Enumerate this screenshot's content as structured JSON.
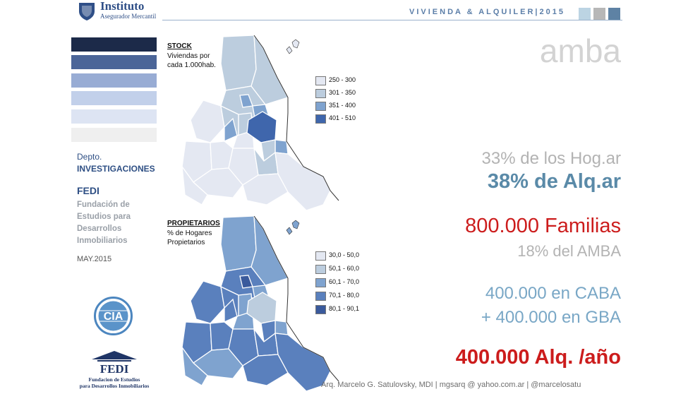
{
  "header": {
    "logo_title": "Instituto",
    "logo_subtitle": "Asegurador Mercantil",
    "title": "VIVIENDA & ALQUILER|2015",
    "squares": [
      "#bcd4e3",
      "#b7b7b7",
      "#5e82a4"
    ]
  },
  "sidebar": {
    "swatches": [
      "#1c2a49",
      "#4b6598",
      "#98acd4",
      "#c2d0ea",
      "#dde4f3",
      "#efefef"
    ],
    "dept_label": "Depto.",
    "dept_name": "INVESTIGACIONES",
    "fedi_heading": "FEDI",
    "fedi_lines": [
      "Fundación de",
      "Estudios para",
      "Desarrollos",
      "Inmobiliarios"
    ],
    "date": "MAY.2015",
    "cia_logo_text": "CIA",
    "fedi_logo": {
      "name": "FEDI",
      "line1": "Fundacion de Estudios",
      "line2": "para Desarrollos Inmobiliarios"
    }
  },
  "maps": [
    {
      "title": "STOCK",
      "subtitle_lines": [
        "Viviendas por",
        "cada 1.000hab."
      ],
      "legend": [
        {
          "label": "250 - 300",
          "color": "#e4e8f2"
        },
        {
          "label": "301 - 350",
          "color": "#bccdde"
        },
        {
          "label": "351 - 400",
          "color": "#7fa3cf"
        },
        {
          "label": "401 - 510",
          "color": "#3f66ac"
        }
      ]
    },
    {
      "title": "PROPIETARIOS",
      "subtitle_lines": [
        "% de Hogares",
        "Propietarios"
      ],
      "legend": [
        {
          "label": "30,0 - 50,0",
          "color": "#e4e8f2"
        },
        {
          "label": "50,1 - 60,0",
          "color": "#bccdde"
        },
        {
          "label": "60,1 - 70,0",
          "color": "#7fa3cf"
        },
        {
          "label": "70,1 - 80,0",
          "color": "#5a80bd"
        },
        {
          "label": "80,1 - 90,1",
          "color": "#3a5a9c"
        }
      ]
    }
  ],
  "right": {
    "region": "amba",
    "hogares": "33% de los Hog.ar",
    "alquileres": "38%  de  Alq.ar",
    "familias": "800.000 Familias",
    "pct_amba": "18% del AMBA",
    "caba": "400.000 en CABA",
    "gba": "+  400.000 en   GBA",
    "alq_ano": "400.000 Alq. /año"
  },
  "footer": "Arq. Marcelo G. Satulovsky, MDI  |  mgsarq @ yahoo.com.ar  |  @marcelosatu"
}
